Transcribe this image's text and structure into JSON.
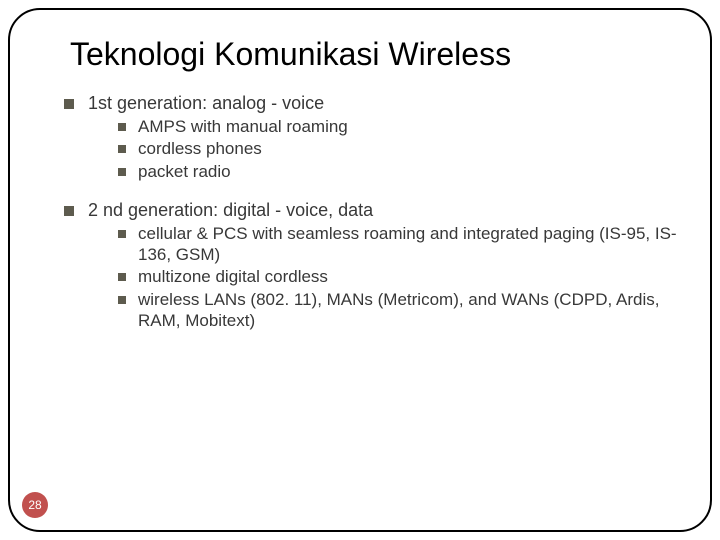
{
  "title": "Teknologi Komunikasi Wireless",
  "page_number": "28",
  "colors": {
    "bullet": "#5d5b4e",
    "text": "#383838",
    "page_badge_bg": "#c1504e",
    "page_badge_fg": "#ffffff",
    "border": "#000000"
  },
  "items": [
    {
      "label": "1st generation: analog - voice",
      "children": [
        "AMPS with manual roaming",
        "cordless phones",
        "packet radio"
      ]
    },
    {
      "label": "2 nd generation: digital - voice, data",
      "children": [
        "cellular & PCS with seamless roaming and integrated paging (IS-95, IS-136, GSM)",
        "multizone digital cordless",
        "wireless LANs (802. 11), MANs (Metricom), and WANs (CDPD, Ardis, RAM, Mobitext)"
      ]
    }
  ]
}
